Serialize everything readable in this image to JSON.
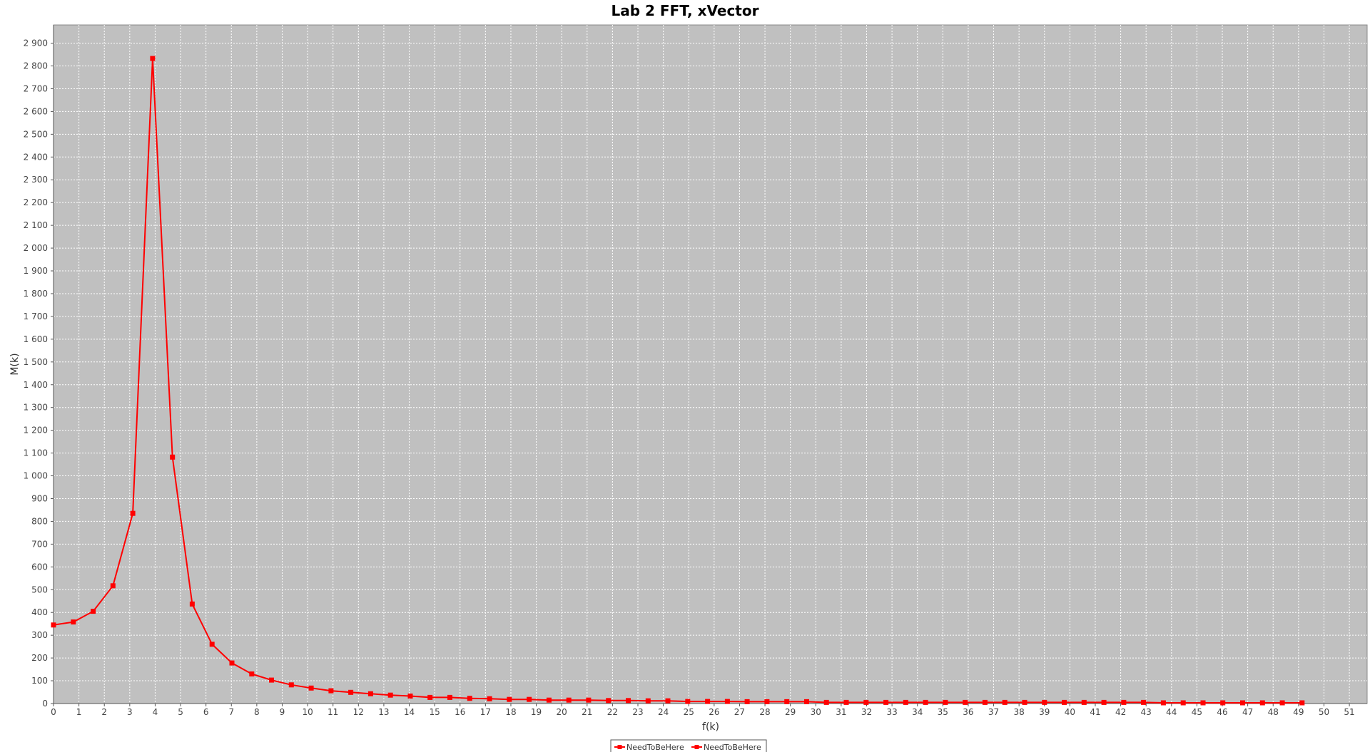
{
  "chart_data": {
    "type": "line",
    "title": "Lab 2 FFT, xVector",
    "xlabel": "f(k)",
    "ylabel": "M(k)",
    "xlim": [
      0,
      51.7
    ],
    "ylim": [
      0,
      2980
    ],
    "x_ticks": [
      0,
      1,
      2,
      3,
      4,
      5,
      6,
      7,
      8,
      9,
      10,
      11,
      12,
      13,
      14,
      15,
      16,
      17,
      18,
      19,
      20,
      21,
      22,
      23,
      24,
      25,
      26,
      27,
      28,
      29,
      30,
      31,
      32,
      33,
      34,
      35,
      36,
      37,
      38,
      39,
      40,
      41,
      42,
      43,
      44,
      45,
      46,
      47,
      48,
      49,
      50,
      51
    ],
    "y_ticks": [
      0,
      100,
      200,
      300,
      400,
      500,
      600,
      700,
      800,
      900,
      1000,
      1100,
      1200,
      1300,
      1400,
      1500,
      1600,
      1700,
      1800,
      1900,
      2000,
      2100,
      2200,
      2300,
      2400,
      2500,
      2600,
      2700,
      2800,
      2900
    ],
    "y_tick_labels": [
      "0",
      "100",
      "200",
      "300",
      "400",
      "500",
      "600",
      "700",
      "800",
      "900",
      "1 000",
      "1 100",
      "1 200",
      "1 300",
      "1 400",
      "1 500",
      "1 600",
      "1 700",
      "1 800",
      "1 900",
      "2 000",
      "2 100",
      "2 200",
      "2 300",
      "2 400",
      "2 500",
      "2 600",
      "2 700",
      "2 800",
      "2 900"
    ],
    "grid": true,
    "legend_position": "bottom-center",
    "plot_background": "#c0c0c0",
    "series": [
      {
        "name": "NeedToBeHere",
        "color": "#ff0000",
        "marker": "square",
        "x": [
          0,
          0.78,
          1.56,
          2.34,
          3.12,
          3.9,
          4.68,
          5.46,
          6.24,
          7.02,
          7.8,
          8.58,
          9.36,
          10.14,
          10.92,
          11.7,
          12.48,
          13.26,
          14.04,
          14.82,
          15.6,
          16.38,
          17.16,
          17.94,
          18.72,
          19.5,
          20.28,
          21.06,
          21.84,
          22.62,
          23.4,
          24.18,
          24.96,
          25.74,
          26.52,
          27.3,
          28.08,
          28.86,
          29.64,
          30.42,
          31.2,
          31.98,
          32.76,
          33.54,
          34.32,
          35.1,
          35.88,
          36.66,
          37.44,
          38.22,
          39.0,
          39.78,
          40.56,
          41.34,
          42.12,
          42.9,
          43.68,
          44.46,
          45.24,
          46.02,
          46.8,
          47.58,
          48.36,
          49.14
        ],
        "values": [
          345,
          358,
          405,
          517,
          835,
          2833,
          1082,
          437,
          260,
          178,
          130,
          103,
          82,
          68,
          56,
          49,
          43,
          37,
          33,
          27,
          27,
          23,
          21,
          18,
          18,
          15,
          15,
          15,
          13,
          13,
          12,
          12,
          9,
          9,
          9,
          8,
          8,
          8,
          8,
          5,
          5,
          5,
          5,
          5,
          5,
          5,
          5,
          5,
          5,
          5,
          5,
          5,
          5,
          5,
          5,
          5,
          3,
          3,
          3,
          3,
          3,
          3,
          3,
          3
        ]
      }
    ],
    "legend": [
      {
        "label": "NeedToBeHere",
        "color": "#ff0000"
      },
      {
        "label": "NeedToBeHere",
        "color": "#ff0000"
      }
    ]
  }
}
